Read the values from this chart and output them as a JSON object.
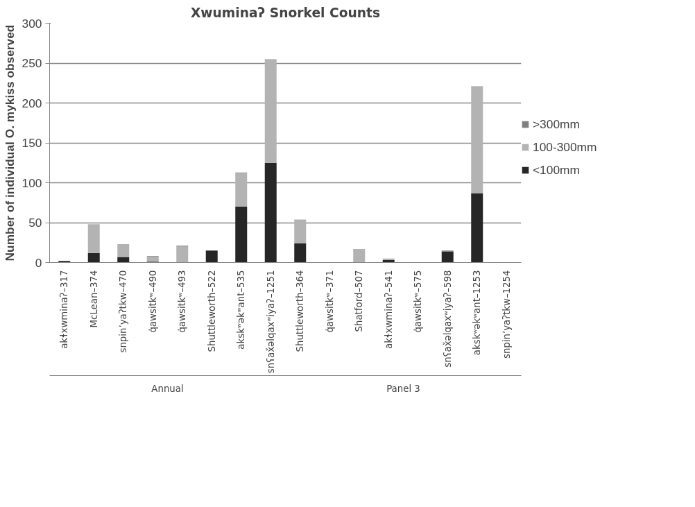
{
  "chart_data": {
    "type": "bar",
    "stacked": true,
    "title": "Xwuminaʔ Snorkel Counts",
    "ylabel": "Number of individual O. mykiss observed",
    "categories": [
      "akɬxwminaʔ–317",
      "McLean–374",
      "snpinʼyaʔtkw–470",
      "q̇awsitkʷ–490",
      "q̇awsitkʷ–493",
      "Shuttleworth–522",
      "akskʷəkʷant–535",
      "snʕax̌əlqaxʷiyaʔ–1251",
      "Shuttleworth–364",
      "q̇awsitkʷ–371",
      "Shatford–507",
      "akɬxwminaʔ–541",
      "q̇awsitkʷ–575",
      "snʕax̌əlqaxʷiyaʔ–598",
      "akskʷəkʷant–1253",
      "snpinʼyaʔtkw–1254"
    ],
    "series": [
      {
        "name": "<100mm",
        "color": "#262626",
        "values": [
          2,
          12,
          7,
          1,
          0,
          15,
          70,
          125,
          24,
          0,
          0,
          3,
          0,
          14,
          87,
          0
        ]
      },
      {
        "name": "100-300mm",
        "color": "#b3b3b3",
        "values": [
          0,
          36,
          16,
          6,
          20,
          0,
          43,
          130,
          30,
          0,
          17,
          2,
          0,
          0,
          134,
          0
        ]
      },
      {
        "name": ">300mm",
        "color": "#808080",
        "values": [
          0,
          0,
          0,
          1,
          1,
          0,
          0,
          0,
          0,
          0,
          0,
          0,
          0,
          1,
          0,
          0
        ]
      }
    ],
    "annotations": [
      "Annual",
      "Panel 3"
    ],
    "ylim": [
      0,
      300
    ],
    "yticks": [
      0,
      50,
      100,
      150,
      200,
      250,
      300
    ],
    "grid": "y",
    "legend": "right"
  }
}
